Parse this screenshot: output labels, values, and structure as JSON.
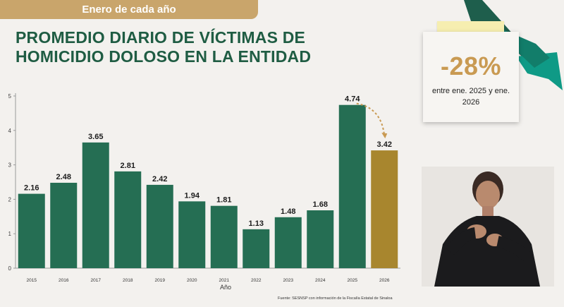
{
  "header": {
    "banner": "Enero de cada año",
    "title_line1": "PROMEDIO DIARIO DE VÍCTIMAS DE",
    "title_line2": "HOMICIDIO DOLOSO EN LA ENTIDAD"
  },
  "callout": {
    "percent": "-28%",
    "description": "entre ene. 2025 y ene. 2026"
  },
  "source": "Fuente: SESNSP con información de la Fiscalía Estatal de Sinaloa",
  "chart_data": {
    "type": "bar",
    "xlabel": "Año",
    "ylabel": "",
    "ylim": [
      0,
      5
    ],
    "yticks": [
      0,
      1,
      2,
      3,
      4,
      5
    ],
    "categories": [
      "2015",
      "2016",
      "2017",
      "2018",
      "2019",
      "2020",
      "2021",
      "2022",
      "2023",
      "2024",
      "2025",
      "2026"
    ],
    "values": [
      2.16,
      2.48,
      3.65,
      2.81,
      2.42,
      1.94,
      1.81,
      1.13,
      1.48,
      1.68,
      4.74,
      3.42
    ],
    "labels": [
      "2.16",
      "2.48",
      "3.65",
      "2.81",
      "2.42",
      "1.94",
      "1.81",
      "1.13",
      "1.48",
      "1.68",
      "4.74",
      "3.42"
    ],
    "colors": [
      "#256e53",
      "#256e53",
      "#256e53",
      "#256e53",
      "#256e53",
      "#256e53",
      "#256e53",
      "#256e53",
      "#256e53",
      "#256e53",
      "#256e53",
      "#a8862e"
    ],
    "grid": false,
    "annotation": "dashed arrow from 2025 to 2026"
  }
}
